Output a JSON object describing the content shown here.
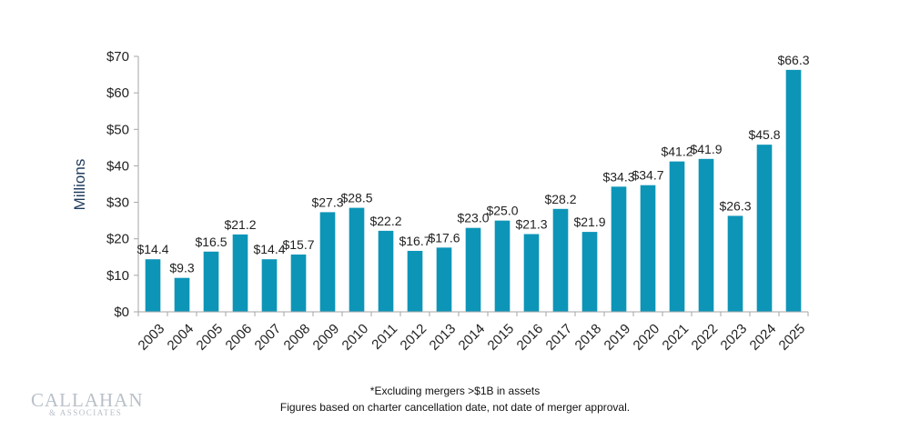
{
  "chart_data": {
    "type": "bar",
    "title": "",
    "xlabel": "",
    "ylabel": "Millions",
    "categories": [
      "2003",
      "2004",
      "2005",
      "2006",
      "2007",
      "2008",
      "2009",
      "2010",
      "2011",
      "2012",
      "2013",
      "2014",
      "2015",
      "2016",
      "2017",
      "2018",
      "2019",
      "2020",
      "2021",
      "2022",
      "2023",
      "2024",
      "2025"
    ],
    "values": [
      14.4,
      9.3,
      16.5,
      21.2,
      14.4,
      15.7,
      27.3,
      28.5,
      22.2,
      16.7,
      17.6,
      23.0,
      25.0,
      21.3,
      28.2,
      21.9,
      34.3,
      34.7,
      41.2,
      41.9,
      26.3,
      45.8,
      66.3
    ],
    "data_labels": [
      "$14.4",
      "$9.3",
      "$16.5",
      "$21.2",
      "$14.4",
      "$15.7",
      "$27.3",
      "$28.5",
      "$22.2",
      "$16.7",
      "$17.6",
      "$23.0",
      "$25.0",
      "$21.3",
      "$28.2",
      "$21.9",
      "$34.3",
      "$34.7",
      "$41.2",
      "$41.9",
      "$26.3",
      "$45.8",
      "$66.3"
    ],
    "ylim": [
      0,
      70
    ],
    "yticks": [
      0,
      10,
      20,
      30,
      40,
      50,
      60,
      70
    ],
    "ytick_labels": [
      "$0",
      "$10",
      "$20",
      "$30",
      "$40",
      "$50",
      "$60",
      "$70"
    ],
    "grid": false,
    "legend": "none",
    "bar_color": "#0d95b8"
  },
  "footnotes": {
    "line1": "*Excluding mergers >$1B in assets",
    "line2": "Figures based on charter cancellation date, not date of merger approval."
  },
  "logo": {
    "name": "CALLAHAN",
    "sub": "& ASSOCIATES"
  }
}
